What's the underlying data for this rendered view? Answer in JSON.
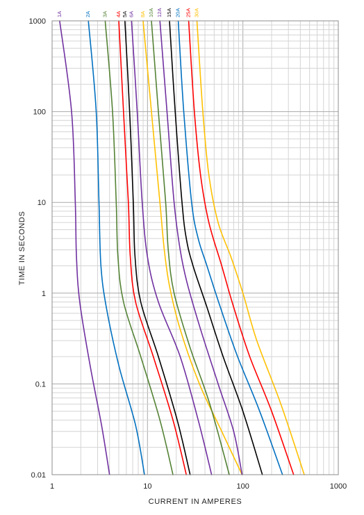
{
  "chart_data": {
    "type": "line",
    "xlabel": "CURRENT IN AMPERES",
    "ylabel": "TIME IN SECONDS",
    "xscale": "log",
    "yscale": "log",
    "xlim": [
      1,
      1000
    ],
    "ylim": [
      0.01,
      1000
    ],
    "grid": true,
    "x_ticks": [
      {
        "value": 1,
        "label": "1"
      },
      {
        "value": 10,
        "label": "10"
      },
      {
        "value": 100,
        "label": "100"
      },
      {
        "value": 1000,
        "label": "1000"
      }
    ],
    "y_ticks": [
      {
        "value": 1000,
        "label": "1000"
      },
      {
        "value": 100,
        "label": "100"
      },
      {
        "value": 10,
        "label": "10"
      },
      {
        "value": 1,
        "label": "1"
      },
      {
        "value": 0.1,
        "label": "0.1"
      },
      {
        "value": 0.01,
        "label": "0.01"
      }
    ],
    "series": [
      {
        "name": "1A",
        "color": "#7030a0",
        "points": [
          [
            1.2,
            1000
          ],
          [
            1.6,
            100
          ],
          [
            1.75,
            10
          ],
          [
            1.8,
            2.5
          ],
          [
            1.95,
            0.8
          ],
          [
            2.5,
            0.16
          ],
          [
            3.3,
            0.035
          ],
          [
            4.0,
            0.01
          ]
        ]
      },
      {
        "name": "2A",
        "color": "#0070c0",
        "points": [
          [
            2.4,
            1000
          ],
          [
            2.9,
            100
          ],
          [
            3.1,
            10
          ],
          [
            3.25,
            2.0
          ],
          [
            3.7,
            0.7
          ],
          [
            5.0,
            0.16
          ],
          [
            7.5,
            0.035
          ],
          [
            9.3,
            0.01
          ]
        ]
      },
      {
        "name": "3A",
        "color": "#548235",
        "points": [
          [
            3.6,
            1000
          ],
          [
            4.3,
            100
          ],
          [
            4.7,
            10
          ],
          [
            4.9,
            2.5
          ],
          [
            5.6,
            0.8
          ],
          [
            8.5,
            0.2
          ],
          [
            13.5,
            0.04
          ],
          [
            18.5,
            0.01
          ]
        ]
      },
      {
        "name": "4A",
        "color": "#ff0000",
        "points": [
          [
            5.0,
            1000
          ],
          [
            5.6,
            100
          ],
          [
            6.3,
            10
          ],
          [
            6.6,
            2.5
          ],
          [
            7.5,
            0.8
          ],
          [
            11.5,
            0.2
          ],
          [
            18.5,
            0.04
          ],
          [
            25.5,
            0.01
          ]
        ]
      },
      {
        "name": "5A",
        "color": "#000000",
        "points": [
          [
            5.8,
            1000
          ],
          [
            6.5,
            100
          ],
          [
            7.1,
            10
          ],
          [
            7.4,
            2.5
          ],
          [
            8.5,
            0.8
          ],
          [
            13,
            0.2
          ],
          [
            20.5,
            0.04
          ],
          [
            28,
            0.01
          ]
        ]
      },
      {
        "name": "6A",
        "color": "#7030a0",
        "points": [
          [
            6.8,
            1000
          ],
          [
            7.8,
            100
          ],
          [
            8.8,
            10
          ],
          [
            10,
            2.5
          ],
          [
            13,
            0.8
          ],
          [
            22,
            0.2
          ],
          [
            34,
            0.04
          ],
          [
            47,
            0.01
          ]
        ]
      },
      {
        "name": "8A",
        "color": "#ffc000",
        "points": [
          [
            9.0,
            1000
          ],
          [
            11,
            100
          ],
          [
            13.5,
            10
          ],
          [
            15,
            3.0
          ],
          [
            17,
            1.2
          ],
          [
            22,
            0.4
          ],
          [
            35,
            0.1
          ],
          [
            60,
            0.03
          ],
          [
            98,
            0.01
          ]
        ]
      },
      {
        "name": "10A",
        "color": "#548235",
        "points": [
          [
            11,
            1000
          ],
          [
            13,
            100
          ],
          [
            15.5,
            10
          ],
          [
            16.5,
            3.0
          ],
          [
            19,
            1.0
          ],
          [
            28,
            0.25
          ],
          [
            45,
            0.06
          ],
          [
            72,
            0.01
          ]
        ]
      },
      {
        "name": "12A",
        "color": "#7030a0",
        "points": [
          [
            13.5,
            1000
          ],
          [
            16,
            100
          ],
          [
            19,
            10
          ],
          [
            22,
            3.0
          ],
          [
            26,
            1.3
          ],
          [
            36,
            0.4
          ],
          [
            55,
            0.1
          ],
          [
            80,
            0.03
          ],
          [
            98,
            0.01
          ]
        ]
      },
      {
        "name": "15A",
        "color": "#000000",
        "points": [
          [
            17,
            1000
          ],
          [
            19.5,
            100
          ],
          [
            23,
            10
          ],
          [
            25.5,
            4.0
          ],
          [
            30,
            2.0
          ],
          [
            42,
            0.7
          ],
          [
            62,
            0.2
          ],
          [
            100,
            0.05
          ],
          [
            160,
            0.01
          ]
        ]
      },
      {
        "name": "20A",
        "color": "#0070c0",
        "points": [
          [
            21,
            1000
          ],
          [
            24,
            100
          ],
          [
            29,
            10
          ],
          [
            34,
            4.0
          ],
          [
            42,
            2.0
          ],
          [
            58,
            0.7
          ],
          [
            88,
            0.2
          ],
          [
            150,
            0.05
          ],
          [
            260,
            0.01
          ]
        ]
      },
      {
        "name": "25A",
        "color": "#ff0000",
        "points": [
          [
            27,
            1000
          ],
          [
            31,
            100
          ],
          [
            36,
            20
          ],
          [
            44,
            6.0
          ],
          [
            60,
            2.0
          ],
          [
            80,
            0.7
          ],
          [
            118,
            0.2
          ],
          [
            200,
            0.05
          ],
          [
            340,
            0.01
          ]
        ]
      },
      {
        "name": "30A",
        "color": "#ffc000",
        "points": [
          [
            33,
            1000
          ],
          [
            38,
            100
          ],
          [
            44,
            20
          ],
          [
            55,
            6.0
          ],
          [
            75,
            2.5
          ],
          [
            100,
            1.0
          ],
          [
            140,
            0.3
          ],
          [
            250,
            0.06
          ],
          [
            440,
            0.01
          ]
        ]
      }
    ]
  }
}
